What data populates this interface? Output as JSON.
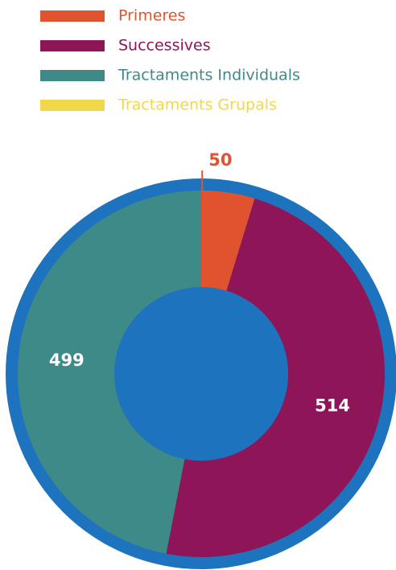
{
  "chart_data": {
    "type": "donut",
    "categories": [
      "Primeres",
      "Successives",
      "Tractaments Individuals",
      "Tractaments Grupals"
    ],
    "values": [
      50,
      514,
      499,
      0
    ],
    "colors": [
      "#e0532e",
      "#8e1558",
      "#3e8a88",
      "#f0d84a"
    ],
    "ring_color": "#1e73be",
    "legend": "top-left"
  }
}
